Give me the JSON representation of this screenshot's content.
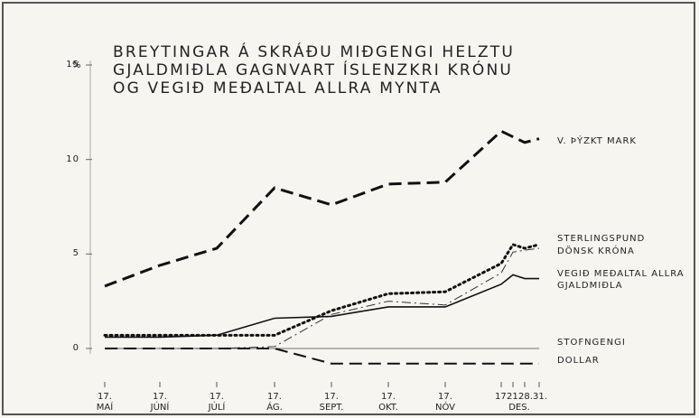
{
  "chart_data": {
    "type": "line",
    "title": [
      "BREYTINGAR Á SKRÁÐU MIÐGENGI HELZTU",
      "GJALDMIÐLA GAGNVART ÍSLENZKRI KRÓNU",
      "OG VEGIÐ MEÐALTAL ALLRA MYNTA"
    ],
    "y_unit": "%",
    "categories": [
      "17. MAÍ",
      "17. JÚNÍ",
      "17. JÚLÍ",
      "17. ÁG.",
      "17. SEPT.",
      "17. OKT.",
      "17. NÓV",
      "17.",
      "21.",
      "28.",
      "31."
    ],
    "x_annotation": "DES.",
    "ylim": [
      -2,
      15.5
    ],
    "yticks": [
      0,
      5,
      10,
      15
    ],
    "series": [
      {
        "name": "V. ÞÝZKT MARK",
        "color": "#111111",
        "line_style": "dashed",
        "line_width": 3,
        "values": [
          3.3,
          4.4,
          5.3,
          8.5,
          7.6,
          8.7,
          8.8,
          11.5,
          11.2,
          10.9,
          11.1
        ]
      },
      {
        "name": "STERLINGSPUND",
        "color": "#111111",
        "line_style": "dotted",
        "line_width": 3,
        "values": [
          0.7,
          0.7,
          0.7,
          0.7,
          2.0,
          2.9,
          3.0,
          4.5,
          5.5,
          5.3,
          5.5
        ]
      },
      {
        "name": "DÖNSK KRÓNA",
        "color": "#333333",
        "line_style": "thin-dashed",
        "line_width": 1,
        "values": [
          0,
          0,
          0,
          0.1,
          1.8,
          2.5,
          2.3,
          4.0,
          5.1,
          5.2,
          5.3
        ]
      },
      {
        "name": "VEGIÐ MEÐALTAL ALLRA GJALDMIÐLA",
        "color": "#111111",
        "line_style": "solid",
        "line_width": 1.6,
        "values": [
          0.6,
          0.6,
          0.7,
          1.6,
          1.7,
          2.2,
          2.2,
          3.4,
          3.9,
          3.7,
          3.7
        ]
      },
      {
        "name": "STOFNGENGI",
        "color": "#444444",
        "line_style": "solid",
        "line_width": 0.8,
        "values": [
          0,
          0,
          0,
          0,
          0,
          0,
          0,
          0,
          0,
          0,
          0
        ]
      },
      {
        "name": "DOLLAR",
        "color": "#111111",
        "line_style": "dashed",
        "line_width": 2,
        "values": [
          0,
          0,
          0,
          0,
          -0.8,
          -0.8,
          -0.8,
          -0.8,
          -0.8,
          -0.8,
          -0.8
        ]
      }
    ]
  }
}
